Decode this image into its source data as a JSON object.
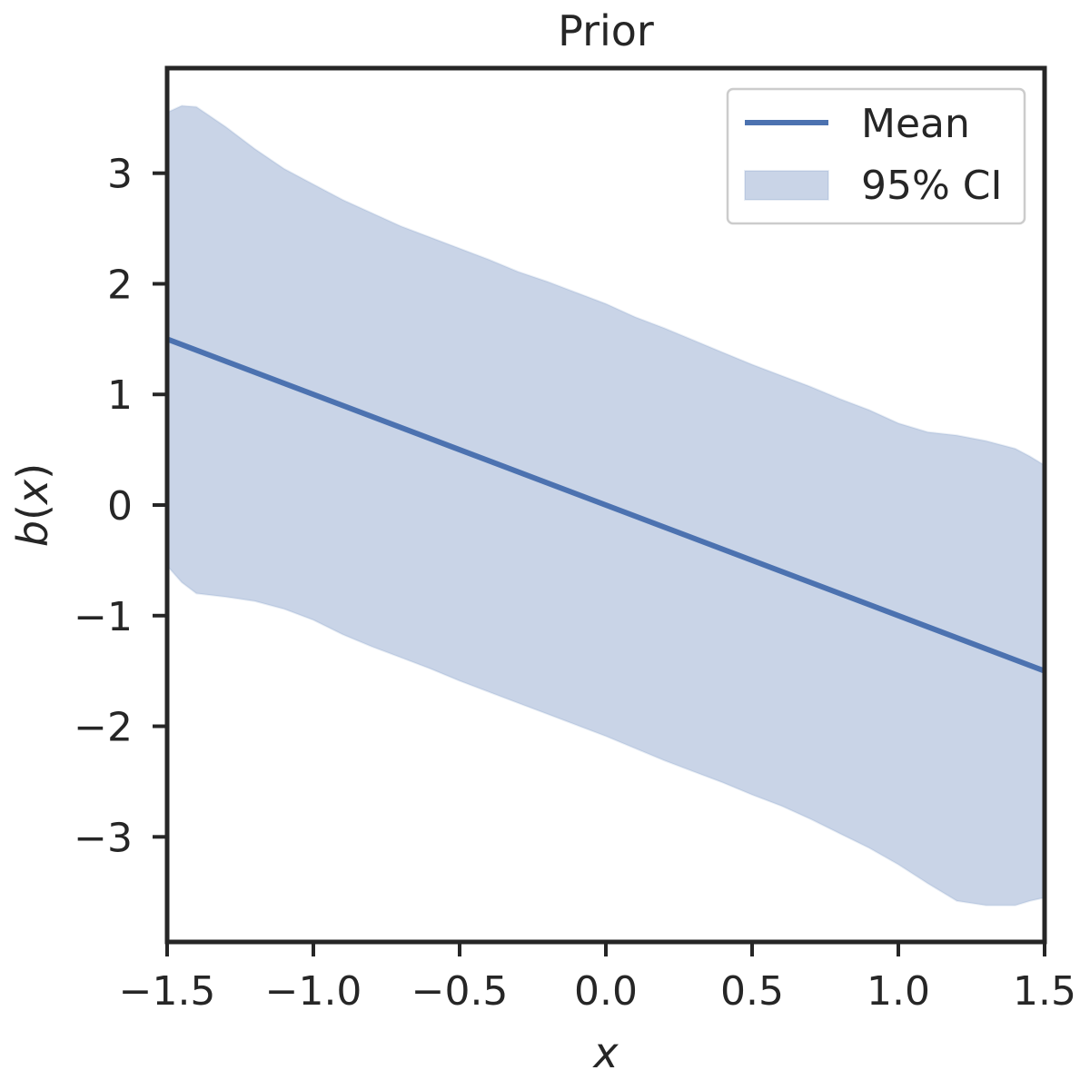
{
  "chart_data": {
    "type": "line",
    "title": "Prior",
    "xlabel": "x",
    "ylabel_main": "b",
    "ylabel_open": "(",
    "ylabel_var": "x",
    "ylabel_close": ")",
    "xlim": [
      -1.5,
      1.5
    ],
    "ylim": [
      -3.95,
      3.95
    ],
    "xticks": [
      -1.5,
      -1.0,
      -0.5,
      0.0,
      0.5,
      1.0,
      1.5
    ],
    "xtick_labels": [
      "−1.5",
      "−1.0",
      "−0.5",
      "0.0",
      "0.5",
      "1.0",
      "1.5"
    ],
    "yticks": [
      -3,
      -2,
      -1,
      0,
      1,
      2,
      3
    ],
    "ytick_labels": [
      "−3",
      "−2",
      "−1",
      "0",
      "1",
      "2",
      "3"
    ],
    "legend": {
      "position": "top-right",
      "entries": [
        "Mean",
        "95% CI"
      ]
    },
    "series": [
      {
        "name": "Mean",
        "x": [
          -1.5,
          1.5
        ],
        "y": [
          1.5,
          -1.5
        ],
        "color": "#4c72b0"
      }
    ],
    "band": {
      "name": "95% CI",
      "color": "#4c72b0",
      "opacity": 0.3,
      "x": [
        -1.5,
        -1.45,
        -1.4,
        -1.3,
        -1.2,
        -1.1,
        -1.0,
        -0.9,
        -0.8,
        -0.7,
        -0.6,
        -0.5,
        -0.4,
        -0.3,
        -0.2,
        -0.1,
        0.0,
        0.1,
        0.2,
        0.3,
        0.4,
        0.5,
        0.6,
        0.7,
        0.8,
        0.9,
        1.0,
        1.1,
        1.2,
        1.3,
        1.4,
        1.45,
        1.5
      ],
      "upper": [
        3.55,
        3.61,
        3.6,
        3.42,
        3.22,
        3.04,
        2.9,
        2.76,
        2.64,
        2.52,
        2.42,
        2.32,
        2.22,
        2.11,
        2.02,
        1.92,
        1.82,
        1.7,
        1.6,
        1.49,
        1.38,
        1.27,
        1.17,
        1.07,
        0.96,
        0.86,
        0.74,
        0.66,
        0.63,
        0.58,
        0.51,
        0.44,
        0.36
      ],
      "lower": [
        -0.55,
        -0.7,
        -0.8,
        -0.83,
        -0.87,
        -0.94,
        -1.04,
        -1.17,
        -1.28,
        -1.38,
        -1.48,
        -1.59,
        -1.69,
        -1.79,
        -1.89,
        -1.99,
        -2.09,
        -2.2,
        -2.31,
        -2.41,
        -2.51,
        -2.62,
        -2.72,
        -2.84,
        -2.97,
        -3.1,
        -3.25,
        -3.42,
        -3.58,
        -3.62,
        -3.62,
        -3.58,
        -3.55
      ]
    }
  }
}
